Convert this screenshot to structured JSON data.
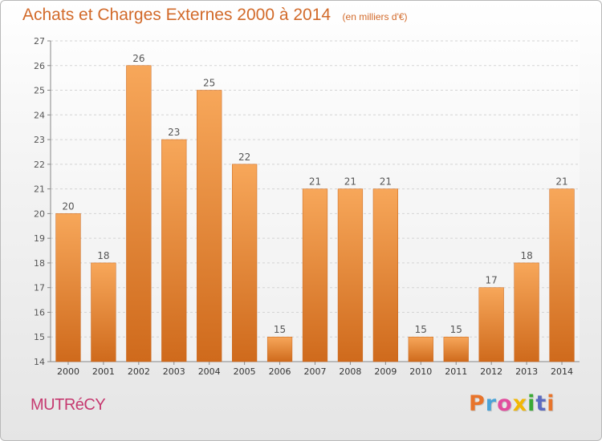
{
  "header": {
    "title": "Achats et Charges Externes 2000 à 2014",
    "subtitle": "(en milliers d'€)"
  },
  "footer": {
    "commune": "MUTRéCY",
    "brand": "Proxiti",
    "brand_colors": [
      "#e8742b",
      "#4aa3d8",
      "#e24d9e",
      "#f2b705",
      "#3aaa35",
      "#5c6bc0",
      "#e8742b"
    ]
  },
  "colors": {
    "bar_light": "#f7a75a",
    "bar_dark": "#cf6a1c",
    "text": "#d26a2a",
    "commune": "#c63a70"
  },
  "chart_data": {
    "type": "bar",
    "categories": [
      "2000",
      "2001",
      "2002",
      "2003",
      "2004",
      "2005",
      "2006",
      "2007",
      "2008",
      "2009",
      "2010",
      "2011",
      "2012",
      "2013",
      "2014"
    ],
    "values": [
      20,
      18,
      26,
      23,
      25,
      22,
      15,
      21,
      21,
      21,
      15,
      15,
      17,
      18,
      21
    ],
    "title": "Achats et Charges Externes 2000 à 2014",
    "subtitle": "(en milliers d'€)",
    "xlabel": "",
    "ylabel": "",
    "ylim": [
      14,
      27
    ],
    "yticks": [
      14,
      15,
      16,
      17,
      18,
      19,
      20,
      21,
      22,
      23,
      24,
      25,
      26,
      27
    ],
    "grid": true,
    "data_labels": true,
    "legend": "none"
  }
}
